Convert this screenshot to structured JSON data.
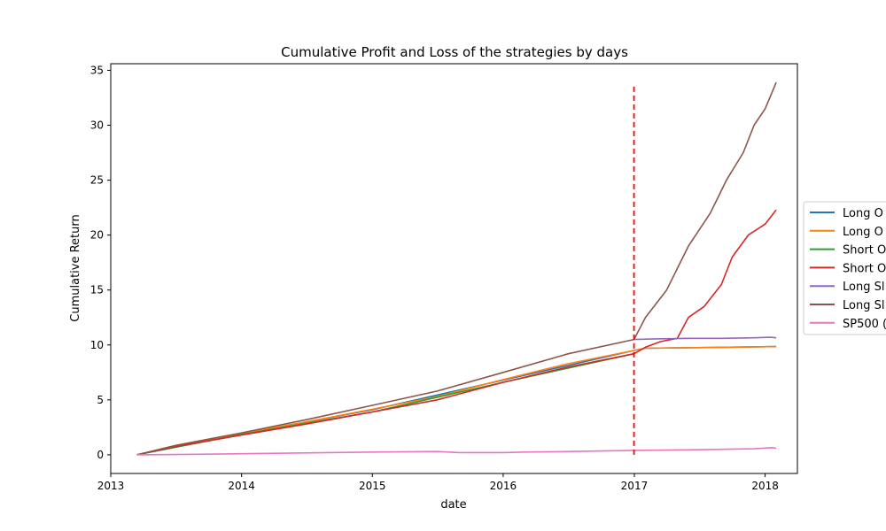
{
  "chart_data": {
    "type": "line",
    "title": "Cumulative Profit and Loss of the strategies by days",
    "xlabel": "date",
    "ylabel": "Cumulative Return",
    "xlim": [
      "2013-01-01",
      "2018-04-01"
    ],
    "ylim": [
      -1.7,
      35.6
    ],
    "x_ticks": [
      "2013",
      "2014",
      "2015",
      "2016",
      "2017",
      "2018"
    ],
    "y_ticks": [
      0,
      5,
      10,
      15,
      20,
      25,
      30,
      35
    ],
    "grid": false,
    "legend_position": "center-right, outside plot (clipped)",
    "vline": {
      "x": "2016-12-31",
      "y_range": [
        0,
        33.8
      ],
      "color": "#ff0000",
      "style": "dashed"
    },
    "series": [
      {
        "name": "Long O",
        "color": "#1f77b4",
        "points": [
          [
            "2013-03-15",
            0
          ],
          [
            "2014-01-01",
            1.9
          ],
          [
            "2015-01-01",
            4.1
          ],
          [
            "2016-01-01",
            6.8
          ],
          [
            "2016-12-31",
            9.5
          ],
          [
            "2017-01-31",
            9.7
          ],
          [
            "2017-06-01",
            9.75
          ],
          [
            "2018-02-01",
            9.85
          ]
        ]
      },
      {
        "name": "Long O",
        "color": "#ff7f0e",
        "points": [
          [
            "2013-03-15",
            0
          ],
          [
            "2013-07-01",
            0.8
          ],
          [
            "2014-01-01",
            1.95
          ],
          [
            "2014-07-01",
            3.0
          ],
          [
            "2015-01-01",
            4.15
          ],
          [
            "2015-07-01",
            5.3
          ],
          [
            "2016-01-01",
            6.85
          ],
          [
            "2016-07-01",
            8.3
          ],
          [
            "2016-12-31",
            9.5
          ],
          [
            "2017-01-31",
            9.7
          ],
          [
            "2017-06-01",
            9.75
          ],
          [
            "2017-10-01",
            9.8
          ],
          [
            "2018-02-01",
            9.85
          ]
        ]
      },
      {
        "name": "Short O",
        "color": "#2ca02c",
        "points": [
          [
            "2013-03-15",
            0
          ],
          [
            "2014-01-01",
            1.85
          ],
          [
            "2015-01-01",
            3.9
          ],
          [
            "2016-01-01",
            6.6
          ],
          [
            "2016-12-31",
            9.2
          ]
        ]
      },
      {
        "name": "Short O",
        "color": "#d62728",
        "points": [
          [
            "2013-03-15",
            0
          ],
          [
            "2013-07-01",
            0.75
          ],
          [
            "2014-01-01",
            1.8
          ],
          [
            "2014-07-01",
            2.8
          ],
          [
            "2015-01-01",
            3.9
          ],
          [
            "2015-07-01",
            5.0
          ],
          [
            "2016-01-01",
            6.6
          ],
          [
            "2016-07-01",
            8.0
          ],
          [
            "2016-12-31",
            9.2
          ],
          [
            "2017-02-01",
            9.8
          ],
          [
            "2017-03-15",
            10.3
          ],
          [
            "2017-05-01",
            10.6
          ],
          [
            "2017-06-01",
            12.5
          ],
          [
            "2017-07-15",
            13.5
          ],
          [
            "2017-09-01",
            15.5
          ],
          [
            "2017-10-01",
            18.0
          ],
          [
            "2017-11-15",
            20.0
          ],
          [
            "2018-01-01",
            21.0
          ],
          [
            "2018-02-01",
            22.3
          ]
        ]
      },
      {
        "name": "Long Sl",
        "color": "#9467bd",
        "points": [
          [
            "2016-12-31",
            10.5
          ],
          [
            "2017-03-01",
            10.55
          ],
          [
            "2017-06-01",
            10.6
          ],
          [
            "2017-09-01",
            10.6
          ],
          [
            "2017-12-01",
            10.65
          ],
          [
            "2018-01-15",
            10.7
          ],
          [
            "2018-02-01",
            10.65
          ]
        ]
      },
      {
        "name": "Long Sl",
        "color": "#8c564b",
        "points": [
          [
            "2013-03-15",
            0
          ],
          [
            "2013-07-01",
            0.85
          ],
          [
            "2014-01-01",
            2.0
          ],
          [
            "2014-07-01",
            3.2
          ],
          [
            "2015-01-01",
            4.5
          ],
          [
            "2015-07-01",
            5.8
          ],
          [
            "2016-01-01",
            7.5
          ],
          [
            "2016-07-01",
            9.2
          ],
          [
            "2016-12-31",
            10.5
          ],
          [
            "2017-02-01",
            12.5
          ],
          [
            "2017-04-01",
            15.0
          ],
          [
            "2017-06-01",
            19.0
          ],
          [
            "2017-08-01",
            22.0
          ],
          [
            "2017-09-15",
            25.0
          ],
          [
            "2017-11-01",
            27.5
          ],
          [
            "2017-12-01",
            30.0
          ],
          [
            "2018-01-01",
            31.5
          ],
          [
            "2018-02-01",
            33.9
          ]
        ]
      },
      {
        "name": "SP500 (",
        "color": "#e377c2",
        "points": [
          [
            "2013-03-15",
            0
          ],
          [
            "2013-09-01",
            0.05
          ],
          [
            "2014-01-01",
            0.1
          ],
          [
            "2014-09-01",
            0.2
          ],
          [
            "2015-01-01",
            0.25
          ],
          [
            "2015-07-01",
            0.3
          ],
          [
            "2015-09-01",
            0.2
          ],
          [
            "2016-01-01",
            0.2
          ],
          [
            "2016-03-01",
            0.25
          ],
          [
            "2016-07-01",
            0.3
          ],
          [
            "2016-12-31",
            0.4
          ],
          [
            "2017-06-01",
            0.45
          ],
          [
            "2017-12-01",
            0.55
          ],
          [
            "2018-01-20",
            0.65
          ],
          [
            "2018-02-01",
            0.6
          ]
        ]
      }
    ]
  }
}
